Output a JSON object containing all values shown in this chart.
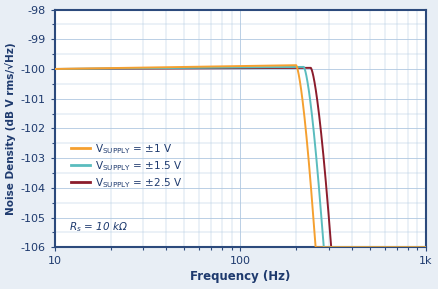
{
  "xlabel": "Frequency (Hz)",
  "ylabel": "Noise Density (dB V rms/√Hz)",
  "xlim_log": [
    10,
    1000
  ],
  "ylim": [
    -106,
    -98
  ],
  "yticks": [
    -106,
    -105,
    -104,
    -103,
    -102,
    -101,
    -100,
    -99,
    -98
  ],
  "bg_color": "#e8eef5",
  "plot_bg_color": "#ffffff",
  "grid_color": "#b0c8e0",
  "border_color": "#2c4a7c",
  "colors": {
    "v1": "#f5a030",
    "v1_5": "#5abcbe",
    "v2_5": "#8b1c2c"
  },
  "legend_labels_main": [
    "V",
    "V",
    "V"
  ],
  "legend_subs": [
    "SUPPLY",
    "SUPPLY",
    "SUPPLY"
  ],
  "legend_vals": [
    " = ±1 V",
    " = ±1.5 V",
    " = ±2.5 V"
  ],
  "annotation": "R$_\\mathregular{s}$ = 10 kΩ",
  "flat_level": -100.0,
  "xlabel_color": "#1e3a6e",
  "ylabel_color": "#1e3a6e",
  "tick_color": "#1e3a6e",
  "label_fontsize": 8.5,
  "tick_fontsize": 8,
  "legend_fontsize": 7.5,
  "annotation_fontsize": 7.5
}
